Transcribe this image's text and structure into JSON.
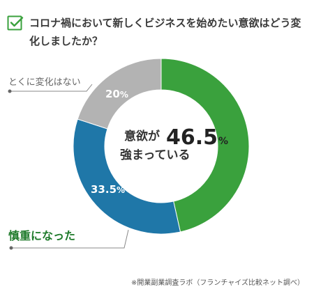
{
  "chart_data": {
    "type": "pie",
    "title": "コロナ禍において新しくビジネスを始めたい意欲はどう変化しましたか？",
    "slices": [
      {
        "label": "意欲が強まっている",
        "value": 46.5,
        "value_label": "46.5",
        "unit": "%",
        "color": "#3aa13d"
      },
      {
        "label": "慎重になった",
        "value": 33.5,
        "value_label": "33.5",
        "unit": "%",
        "color": "#1f77a8"
      },
      {
        "label": "とくに変化はない",
        "value": 20,
        "value_label": "20",
        "unit": "%",
        "color": "#b3b3b3"
      }
    ],
    "center_label": {
      "line1": "意欲が",
      "line2": "強まっている",
      "value": "46.5",
      "unit": "%"
    },
    "legend_placement": "callouts"
  },
  "colors": {
    "accent": "#3aa13d",
    "check_icon": "#3aa13d"
  },
  "source": "※開業副業調査ラボ（フランチャイズ比較ネット調べ）"
}
